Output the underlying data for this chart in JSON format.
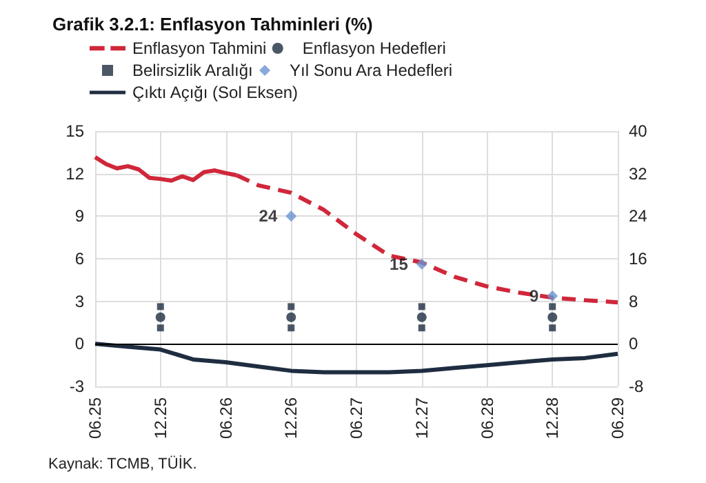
{
  "chart_data": {
    "type": "line",
    "title": "Grafik 3.2.1: Enflasyon Tahminleri (%)",
    "annotations": [
      "Kaynak: TCMB, TÜİK."
    ],
    "xlim": [
      "2025-06",
      "2029-06"
    ],
    "xticks": [
      {
        "value": "2025-06",
        "label": "06.25"
      },
      {
        "value": "2025-12",
        "label": "12.25"
      },
      {
        "value": "2026-06",
        "label": "06.26"
      },
      {
        "value": "2026-12",
        "label": "12.26"
      },
      {
        "value": "2027-06",
        "label": "06.27"
      },
      {
        "value": "2027-12",
        "label": "12.27"
      },
      {
        "value": "2028-06",
        "label": "06.28"
      },
      {
        "value": "2028-12",
        "label": "12.28"
      },
      {
        "value": "2029-06",
        "label": "06.29"
      }
    ],
    "ylim": [
      -3,
      15
    ],
    "yticks": [
      -3,
      0,
      3,
      6,
      9,
      12,
      15
    ],
    "y2lim": [
      -8,
      40
    ],
    "y2ticks": [
      -8,
      0,
      8,
      16,
      24,
      32,
      40
    ],
    "grid": true,
    "legend": "top",
    "ref_lines": [
      {
        "axis": "y",
        "value": 0,
        "color": "#000000"
      }
    ],
    "series": [
      {
        "axis": "y2",
        "color": "#d0273a",
        "line_style": "solid",
        "marker": "none",
        "x": [
          "2025-06",
          "2025-07",
          "2025-08",
          "2025-09",
          "2025-10",
          "2025-11",
          "2025-12",
          "2026-01",
          "2026-02",
          "2026-03",
          "2026-04",
          "2026-05",
          "2026-06",
          "2026-07"
        ],
        "values": [
          35.1,
          33.8,
          33.0,
          33.4,
          32.8,
          31.2,
          31.0,
          30.7,
          31.5,
          30.8,
          32.3,
          32.6,
          32.1,
          31.7
        ]
      },
      {
        "name": "Enflasyon Tahmini",
        "axis": "y2",
        "color": "#d0273a",
        "line_style": "dashed",
        "marker": "none",
        "x": [
          "2026-07",
          "2026-09",
          "2026-12",
          "2027-03",
          "2027-06",
          "2027-09",
          "2027-12",
          "2028-03",
          "2028-06",
          "2028-09",
          "2028-12",
          "2029-03",
          "2029-06"
        ],
        "values": [
          31.7,
          29.8,
          28.4,
          25.2,
          20.6,
          16.6,
          15.3,
          12.6,
          10.8,
          9.6,
          8.7,
          8.2,
          7.8
        ]
      },
      {
        "name": "Enflasyon Hedefleri",
        "type": "scatter",
        "axis": "y2",
        "color": "#1e2d40",
        "marker": "circle",
        "x": [
          "2025-12",
          "2026-12",
          "2027-12",
          "2028-12"
        ],
        "values": [
          5,
          5,
          5,
          5
        ]
      },
      {
        "name": "Belirsizlik Aralığı",
        "type": "scatter",
        "axis": "y2",
        "color": "#1e2d40",
        "marker": "square",
        "x": [
          "2025-12",
          "2025-12",
          "2026-12",
          "2026-12",
          "2027-12",
          "2027-12",
          "2028-12",
          "2028-12"
        ],
        "values": [
          7,
          3,
          7,
          3,
          7,
          3,
          7,
          3
        ]
      },
      {
        "name": "Yıl Sonu Ara Hedefleri",
        "type": "scatter",
        "axis": "y2",
        "color": "#6a93cf",
        "marker": "diamond",
        "x": [
          "2026-12",
          "2027-12",
          "2028-12"
        ],
        "values": [
          24,
          15,
          9
        ],
        "value_labels": [
          "24",
          "15",
          "9"
        ]
      },
      {
        "name": "Çıktı Açığı (Sol Eksen)",
        "axis": "y",
        "color": "#1e2d40",
        "line_style": "solid",
        "marker": "none",
        "x": [
          "2025-06",
          "2025-09",
          "2025-12",
          "2026-03",
          "2026-06",
          "2026-09",
          "2026-12",
          "2027-03",
          "2027-06",
          "2027-09",
          "2027-12",
          "2028-03",
          "2028-06",
          "2028-09",
          "2028-12",
          "2029-03",
          "2029-06"
        ],
        "values": [
          0,
          -0.2,
          -0.4,
          -1.1,
          -1.3,
          -1.6,
          -1.9,
          -2.0,
          -2.0,
          -2.0,
          -1.9,
          -1.7,
          -1.5,
          -1.3,
          -1.1,
          -1.0,
          -0.7
        ]
      }
    ]
  }
}
